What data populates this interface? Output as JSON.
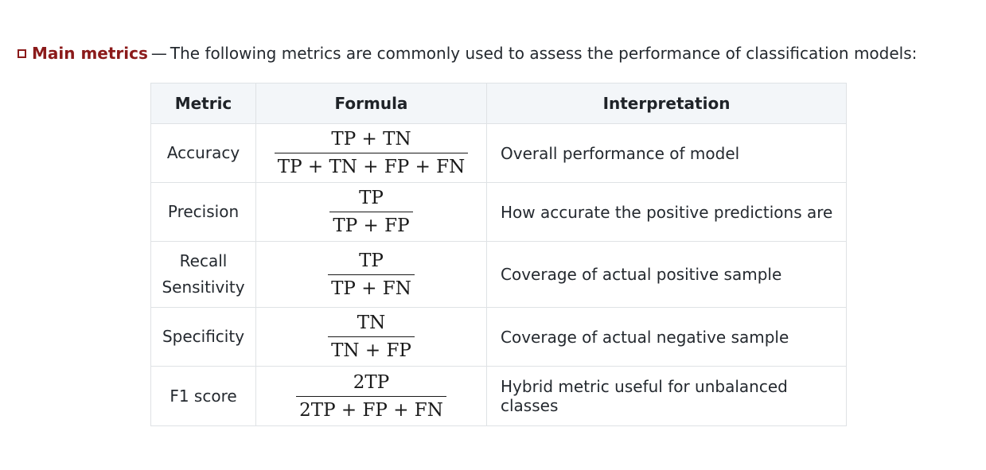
{
  "intro": {
    "label": "Main metrics",
    "dash": "—",
    "text": "The following metrics are commonly used to assess the performance of classification models:"
  },
  "table": {
    "headers": [
      "Metric",
      "Formula",
      "Interpretation"
    ],
    "rows": [
      {
        "metric": [
          "Accuracy"
        ],
        "numerator": "TP + TN",
        "denominator": "TP + TN + FP + FN",
        "interpretation": "Overall performance of model"
      },
      {
        "metric": [
          "Precision"
        ],
        "numerator": "TP",
        "denominator": "TP + FP",
        "interpretation": "How accurate the positive predictions are"
      },
      {
        "metric": [
          "Recall",
          "Sensitivity"
        ],
        "numerator": "TP",
        "denominator": "TP + FN",
        "interpretation": "Coverage of actual positive sample"
      },
      {
        "metric": [
          "Specificity"
        ],
        "numerator": "TN",
        "denominator": "TN + FP",
        "interpretation": "Coverage of actual negative sample"
      },
      {
        "metric": [
          "F1 score"
        ],
        "numerator": "2TP",
        "denominator": "2TP + FP + FN",
        "interpretation": "Hybrid metric useful for unbalanced classes"
      }
    ]
  },
  "colors": {
    "accent": "#8b1a1a",
    "header_bg": "#f3f6f9",
    "border": "#dfe2e5"
  }
}
